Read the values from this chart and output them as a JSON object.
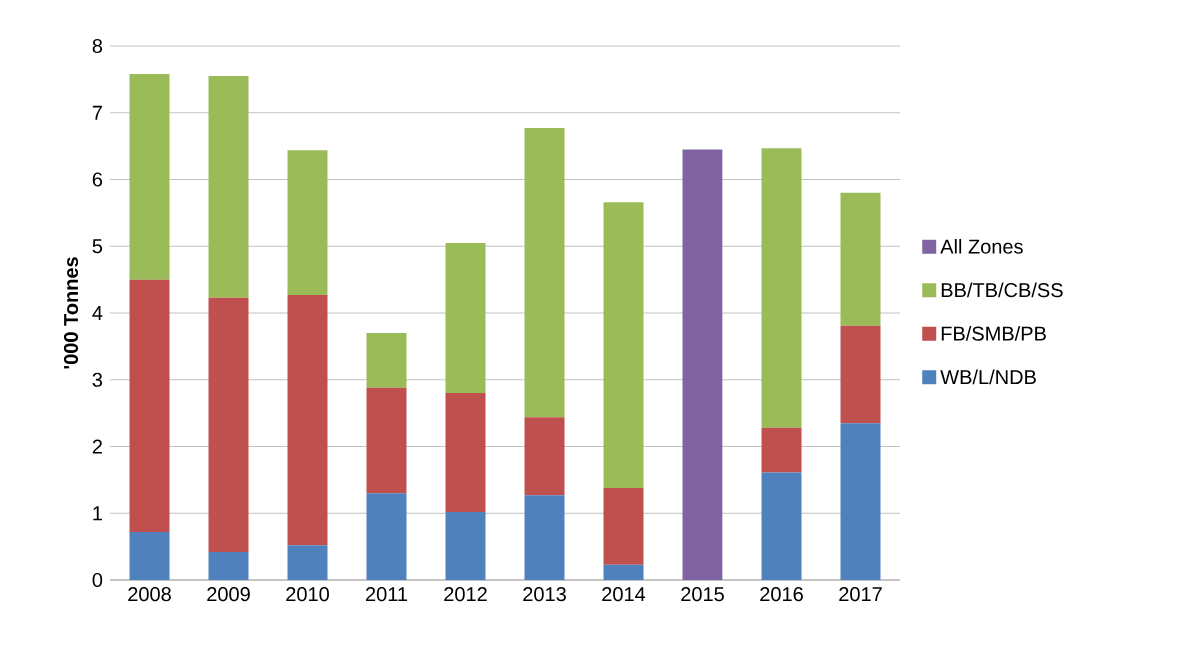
{
  "chart_data": {
    "type": "bar",
    "stacked": true,
    "ylabel": "**'000 Tonnes**",
    "categories": [
      "2008",
      "2009",
      "2010",
      "2011",
      "2012",
      "2013",
      "2014",
      "2015",
      "2016",
      "2017"
    ],
    "series": [
      {
        "name": "WB/L/NDB",
        "color": "#4f81bd",
        "values": [
          0.72,
          0.42,
          0.52,
          1.3,
          1.02,
          1.27,
          0.23,
          null,
          1.61,
          2.35
        ]
      },
      {
        "name": "FB/SMB/PB",
        "color": "#c0504d",
        "values": [
          3.78,
          3.81,
          3.75,
          1.58,
          1.78,
          1.17,
          1.15,
          null,
          0.67,
          1.46
        ]
      },
      {
        "name": "BB/TB/CB/SS",
        "color": "#9bbb59",
        "values": [
          3.08,
          3.32,
          2.17,
          0.82,
          2.25,
          4.33,
          4.28,
          null,
          4.19,
          1.99
        ]
      },
      {
        "name": "All Zones",
        "color": "#8064a2",
        "values": [
          null,
          null,
          null,
          null,
          null,
          null,
          null,
          6.45,
          null,
          null
        ]
      }
    ],
    "ylim": [
      0,
      8
    ],
    "yticks": [
      0,
      1,
      2,
      3,
      4,
      5,
      6,
      7,
      8
    ],
    "grid": "y",
    "legend": "right"
  }
}
